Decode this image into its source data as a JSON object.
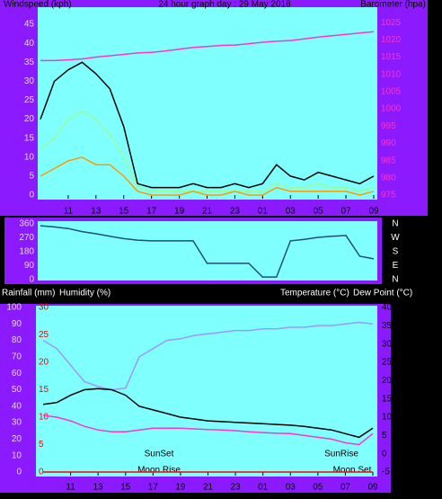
{
  "chart_data": [
    {
      "type": "line",
      "title": "24 hour graph day : 29 May 2018",
      "y_label": "Windspeed (kph)",
      "y2_label": "Barometer (hpa)",
      "x": [
        0,
        1,
        2,
        3,
        4,
        5,
        6,
        7,
        8,
        9,
        10,
        11,
        12,
        13,
        14,
        15,
        16,
        17,
        18,
        19,
        20,
        21,
        22,
        23,
        24
      ],
      "xlim": [
        0,
        24
      ],
      "xticks": [
        {
          "value": 2,
          "label": "11"
        },
        {
          "value": 4,
          "label": "13"
        },
        {
          "value": 6,
          "label": "15"
        },
        {
          "value": 8,
          "label": "17"
        },
        {
          "value": 10,
          "label": "19"
        },
        {
          "value": 12,
          "label": "21"
        },
        {
          "value": 14,
          "label": "23"
        },
        {
          "value": 16,
          "label": "01"
        },
        {
          "value": 18,
          "label": "03"
        },
        {
          "value": 20,
          "label": "05"
        },
        {
          "value": 22,
          "label": "07"
        },
        {
          "value": 24,
          "label": "09"
        }
      ],
      "ylim": [
        0,
        50
      ],
      "yticks": [
        0,
        5,
        10,
        15,
        20,
        25,
        30,
        35,
        40,
        45
      ],
      "y2lim": [
        975,
        1030
      ],
      "y2ticks": [
        975,
        980,
        985,
        990,
        995,
        1000,
        1005,
        1010,
        1015,
        1020,
        1025
      ],
      "series": [
        {
          "color": "#000000",
          "values": [
            20,
            30,
            33,
            35,
            32,
            28,
            18,
            3,
            2,
            2,
            2,
            3,
            2,
            2,
            3,
            2,
            3,
            8,
            5,
            4,
            6,
            5,
            4,
            3,
            5
          ]
        },
        {
          "color": "#99ff99",
          "values": [
            12,
            15,
            20,
            22,
            20,
            16,
            10,
            2,
            1,
            1,
            1,
            1,
            1,
            1,
            1,
            1,
            1,
            3,
            2,
            2,
            3,
            2,
            2,
            1,
            2
          ]
        },
        {
          "color": "#ff9900",
          "values": [
            5,
            7,
            9,
            10,
            8,
            8,
            5,
            1,
            0,
            0,
            0,
            1,
            0,
            0,
            1,
            0,
            0,
            2,
            1,
            1,
            1,
            1,
            1,
            0,
            1
          ]
        },
        {
          "color": "#ff33cc",
          "axis": "y2",
          "values": [
            1014,
            1014,
            1014.2,
            1014.5,
            1015,
            1015.4,
            1015.8,
            1016.2,
            1016.4,
            1016.8,
            1017.3,
            1017.8,
            1018.1,
            1018.4,
            1018.5,
            1018.9,
            1019.3,
            1019.6,
            1019.8,
            1020.3,
            1020.8,
            1021.2,
            1021.6,
            1022,
            1022.4
          ]
        }
      ]
    },
    {
      "type": "line",
      "x": [
        0,
        1,
        2,
        3,
        4,
        5,
        6,
        7,
        8,
        9,
        10,
        11,
        12,
        13,
        14,
        15,
        16,
        17,
        18,
        19,
        20,
        21,
        22,
        23,
        24
      ],
      "xlim": [
        0,
        24
      ],
      "ylim": [
        0,
        360
      ],
      "yticks": [
        0,
        90,
        180,
        270,
        360
      ],
      "y2lim": [
        0,
        360
      ],
      "y2ticks": [
        {
          "value": 360,
          "label": "N"
        },
        {
          "value": 270,
          "label": "W"
        },
        {
          "value": 180,
          "label": "S"
        },
        {
          "value": 90,
          "label": "E"
        },
        {
          "value": 0,
          "label": "N"
        }
      ],
      "series": [
        {
          "color": "#1f4e79",
          "values": [
            348,
            340,
            330,
            310,
            296,
            280,
            265,
            255,
            250,
            250,
            250,
            250,
            105,
            105,
            105,
            105,
            17,
            17,
            250,
            260,
            273,
            280,
            285,
            151,
            134
          ]
        }
      ]
    },
    {
      "type": "line",
      "y_label": "Rainfall (mm)",
      "y3_label": "Humidity (%)",
      "y2_label": "Temperature (°C)",
      "y4_label": "Dew Point (°C)",
      "annotations": [
        "SunSet",
        "SunRise",
        "Moon Rise",
        "Moon Set"
      ],
      "x": [
        0,
        1,
        2,
        3,
        4,
        5,
        6,
        7,
        8,
        9,
        10,
        11,
        12,
        13,
        14,
        15,
        16,
        17,
        18,
        19,
        20,
        21,
        22,
        23,
        24
      ],
      "xlim": [
        0,
        24
      ],
      "xticks": [
        {
          "value": 2,
          "label": "11"
        },
        {
          "value": 4,
          "label": "13"
        },
        {
          "value": 6,
          "label": "15"
        },
        {
          "value": 8,
          "label": "17"
        },
        {
          "value": 10,
          "label": "19"
        },
        {
          "value": 12,
          "label": "21"
        },
        {
          "value": 14,
          "label": "23"
        },
        {
          "value": 16,
          "label": "01"
        },
        {
          "value": 18,
          "label": "03"
        },
        {
          "value": 20,
          "label": "05"
        },
        {
          "value": 22,
          "label": "07"
        },
        {
          "value": 24,
          "label": "09"
        }
      ],
      "ylim": [
        0,
        30
      ],
      "yticks": [
        0,
        5,
        10,
        15,
        20,
        25,
        30
      ],
      "y3lim": [
        0,
        100
      ],
      "y3ticks": [
        0,
        10,
        20,
        30,
        40,
        50,
        60,
        70,
        80,
        90,
        100
      ],
      "y2lim": [
        -5,
        40
      ],
      "y2ticks": [
        -5,
        0,
        5,
        10,
        15,
        20,
        25,
        30,
        35,
        40
      ],
      "series": [
        {
          "color": "#9999ff",
          "axis": "y3",
          "values": [
            80,
            75,
            65,
            55,
            52,
            50,
            51,
            70,
            75,
            80,
            81,
            83,
            84,
            85,
            86,
            86,
            87,
            87,
            88,
            88,
            89,
            89,
            90,
            91,
            90
          ]
        },
        {
          "color": "#000000",
          "axis": "y2",
          "values": [
            13.5,
            14,
            16,
            17.5,
            17.8,
            17.5,
            16,
            13,
            12,
            11,
            10,
            9.5,
            9,
            8.8,
            8.6,
            8.4,
            8.2,
            8,
            7.8,
            7.5,
            7,
            6.5,
            5.5,
            4.5,
            7
          ]
        },
        {
          "color": "#ff33cc",
          "axis": "y2",
          "values": [
            10.5,
            10,
            9,
            7.5,
            6.5,
            6,
            6,
            6.5,
            7,
            7,
            7,
            6.8,
            6.6,
            6.5,
            6.3,
            6,
            5.8,
            5.6,
            5.5,
            5,
            4.5,
            4,
            3,
            2.5,
            5.5
          ]
        },
        {
          "color": "#ff0000",
          "values": [
            0,
            0,
            0,
            0,
            0,
            0,
            0,
            0,
            0,
            0,
            0,
            0,
            0,
            0,
            0,
            0,
            0,
            0,
            0,
            0,
            0,
            0,
            0,
            0,
            0
          ]
        }
      ]
    }
  ]
}
